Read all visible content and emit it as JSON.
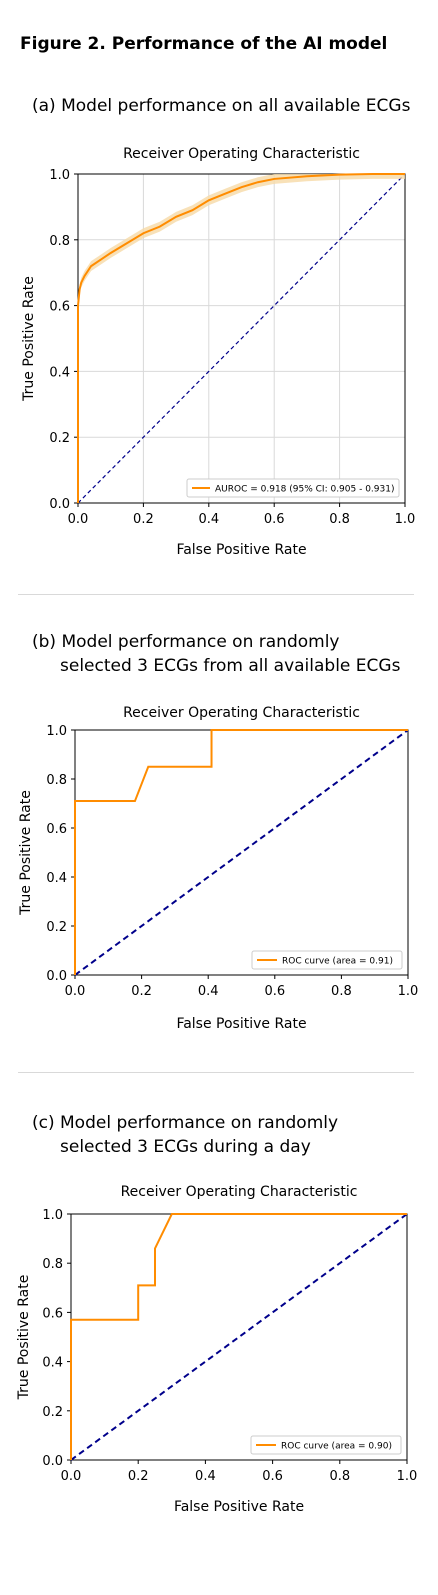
{
  "figure_title": "Figure 2. Performance of the AI model",
  "panels": [
    {
      "title_line1": "(a) Model performance on all available ECGs",
      "title_line2": ""
    },
    {
      "title_line1": "(b) Model performance on randomly",
      "title_line2": "selected 3 ECGs from all available ECGs"
    },
    {
      "title_line1": "(c) Model performance on randomly",
      "title_line2": "selected 3 ECGs during a day"
    }
  ],
  "colors": {
    "roc": "#ff8c00",
    "ci_band": "#f6d9a6",
    "diagonal": "#00008b",
    "grid": "#d9d9d9"
  },
  "chart_data": [
    {
      "type": "line",
      "title": "Receiver Operating Characteristic",
      "xlabel": "False Positive Rate",
      "ylabel": "True Positive Rate",
      "xlim": [
        0,
        1
      ],
      "ylim": [
        0,
        1
      ],
      "xticks": [
        "0.0",
        "0.2",
        "0.4",
        "0.6",
        "0.8",
        "1.0"
      ],
      "yticks": [
        "0.0",
        "0.2",
        "0.4",
        "0.6",
        "0.8",
        "1.0"
      ],
      "grid": true,
      "legend_position": "bottom-right",
      "series": [
        {
          "name": "AUROC = 0.918 (95% CI: 0.905 - 0.931)",
          "x": [
            0,
            0,
            0.005,
            0.01,
            0.02,
            0.04,
            0.07,
            0.1,
            0.15,
            0.2,
            0.25,
            0.3,
            0.35,
            0.4,
            0.45,
            0.5,
            0.55,
            0.6,
            0.7,
            0.8,
            0.9,
            1.0
          ],
          "y": [
            0,
            0.6,
            0.65,
            0.67,
            0.69,
            0.72,
            0.74,
            0.76,
            0.79,
            0.82,
            0.84,
            0.87,
            0.89,
            0.92,
            0.94,
            0.96,
            0.975,
            0.985,
            0.993,
            0.998,
            1.0,
            1.0
          ],
          "ci_halfwidth": 0.015
        },
        {
          "name": "",
          "x": [
            0,
            1
          ],
          "y": [
            0,
            1
          ]
        }
      ]
    },
    {
      "type": "line",
      "title": "Receiver Operating Characteristic",
      "xlabel": "False Positive Rate",
      "ylabel": "True Positive Rate",
      "xlim": [
        0,
        1
      ],
      "ylim": [
        0,
        1
      ],
      "xticks": [
        "0.0",
        "0.2",
        "0.4",
        "0.6",
        "0.8",
        "1.0"
      ],
      "yticks": [
        "0.0",
        "0.2",
        "0.4",
        "0.6",
        "0.8",
        "1.0"
      ],
      "grid": false,
      "legend_position": "bottom-right",
      "series": [
        {
          "name": "ROC curve (area = 0.91)",
          "x": [
            0,
            0,
            0.18,
            0.22,
            0.41,
            0.41,
            1.0
          ],
          "y": [
            0,
            0.71,
            0.71,
            0.85,
            0.85,
            1.0,
            1.0
          ]
        },
        {
          "name": "",
          "x": [
            0,
            1
          ],
          "y": [
            0,
            1
          ]
        }
      ]
    },
    {
      "type": "line",
      "title": "Receiver Operating Characteristic",
      "xlabel": "False Positive Rate",
      "ylabel": "True Positive Rate",
      "xlim": [
        0,
        1
      ],
      "ylim": [
        0,
        1
      ],
      "xticks": [
        "0.0",
        "0.2",
        "0.4",
        "0.6",
        "0.8",
        "1.0"
      ],
      "yticks": [
        "0.0",
        "0.2",
        "0.4",
        "0.6",
        "0.8",
        "1.0"
      ],
      "grid": false,
      "legend_position": "bottom-right",
      "series": [
        {
          "name": "ROC curve (area = 0.90)",
          "x": [
            0,
            0,
            0.2,
            0.2,
            0.25,
            0.25,
            0.3,
            1.0
          ],
          "y": [
            0,
            0.57,
            0.57,
            0.71,
            0.71,
            0.86,
            1.0,
            1.0
          ]
        },
        {
          "name": "",
          "x": [
            0,
            1
          ],
          "y": [
            0,
            1
          ]
        }
      ]
    }
  ]
}
